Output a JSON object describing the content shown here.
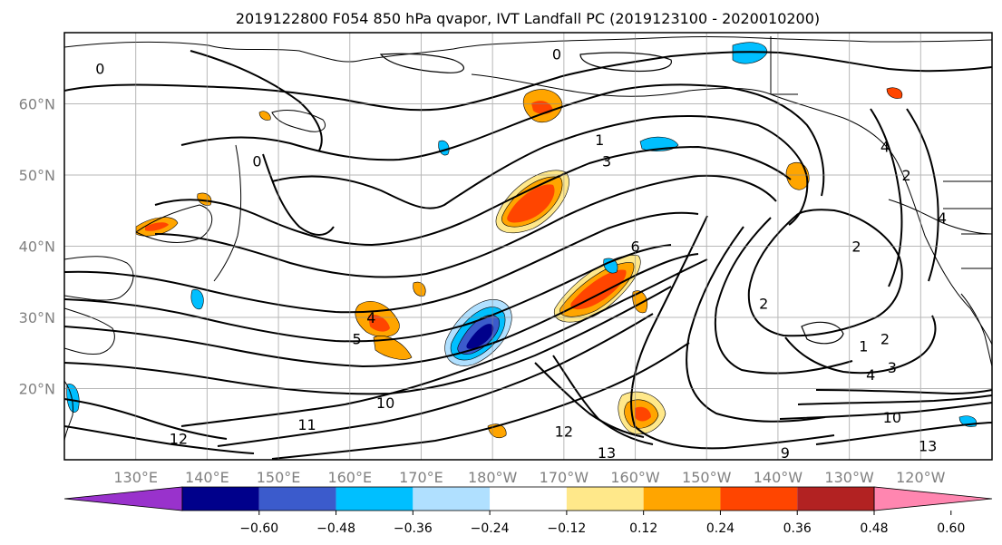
{
  "title": "2019122800 F054 850 hPa qvapor, IVT Landfall PC (2019123100 - 2020010200)",
  "chart_data": {
    "type": "map",
    "map": {
      "lat_labels": [
        "20°N",
        "30°N",
        "40°N",
        "50°N",
        "60°N"
      ],
      "lat_values": [
        20,
        30,
        40,
        50,
        60
      ],
      "lon_labels": [
        "130°E",
        "140°E",
        "150°E",
        "160°E",
        "170°E",
        "180°W",
        "170°W",
        "160°W",
        "150°W",
        "140°W",
        "130°W",
        "120°W"
      ],
      "lon_values": [
        130,
        140,
        150,
        160,
        170,
        180,
        190,
        200,
        210,
        220,
        230,
        240
      ],
      "lon_range": [
        120,
        250
      ],
      "lat_range": [
        10,
        70
      ],
      "grid": true
    },
    "contours": {
      "labels": [
        {
          "value": "0",
          "lon": 125,
          "lat": 65
        },
        {
          "value": "0",
          "lon": 147,
          "lat": 52
        },
        {
          "value": "0",
          "lon": 189,
          "lat": 67
        },
        {
          "value": "1",
          "lon": 195,
          "lat": 55
        },
        {
          "value": "3",
          "lon": 196,
          "lat": 52
        },
        {
          "value": "4",
          "lon": 163,
          "lat": 30
        },
        {
          "value": "5",
          "lon": 161,
          "lat": 27
        },
        {
          "value": "6",
          "lon": 200,
          "lat": 40
        },
        {
          "value": "2",
          "lon": 218,
          "lat": 32
        },
        {
          "value": "2",
          "lon": 231,
          "lat": 40
        },
        {
          "value": "4",
          "lon": 235,
          "lat": 54
        },
        {
          "value": "2",
          "lon": 238,
          "lat": 50
        },
        {
          "value": "4",
          "lon": 243,
          "lat": 44
        },
        {
          "value": "1",
          "lon": 232,
          "lat": 26
        },
        {
          "value": "2",
          "lon": 235,
          "lat": 27
        },
        {
          "value": "4",
          "lon": 233,
          "lat": 22
        },
        {
          "value": "3",
          "lon": 236,
          "lat": 23
        },
        {
          "value": "10",
          "lon": 165,
          "lat": 18
        },
        {
          "value": "11",
          "lon": 154,
          "lat": 15
        },
        {
          "value": "12",
          "lon": 136,
          "lat": 13
        },
        {
          "value": "12",
          "lon": 190,
          "lat": 14
        },
        {
          "value": "13",
          "lon": 196,
          "lat": 11
        },
        {
          "value": "10",
          "lon": 236,
          "lat": 16
        },
        {
          "value": "13",
          "lon": 241,
          "lat": 12
        },
        {
          "value": "9",
          "lon": 221,
          "lat": 11
        }
      ]
    },
    "shading_regions": [
      {
        "level": "neg_strong",
        "lon": 180,
        "lat": 28
      },
      {
        "level": "pos_strong",
        "lon": 184,
        "lat": 47
      },
      {
        "level": "pos_strong",
        "lon": 194,
        "lat": 36
      },
      {
        "level": "pos_mid",
        "lon": 160,
        "lat": 31
      },
      {
        "level": "pos_mid",
        "lon": 186,
        "lat": 58
      },
      {
        "level": "pos_mid",
        "lon": 221,
        "lat": 50
      },
      {
        "level": "neg_mid",
        "lon": 213,
        "lat": 68
      },
      {
        "level": "pos_mid",
        "lon": 200,
        "lat": 16
      }
    ],
    "colorbar": {
      "ticks": [
        "−0.60",
        "−0.48",
        "−0.36",
        "−0.24",
        "−0.12",
        "0.12",
        "0.24",
        "0.36",
        "0.48",
        "0.60"
      ],
      "colors": [
        "#9932cc",
        "#00008b",
        "#3b5bcc",
        "#00bfff",
        "#b0e0ff",
        "#ffffff",
        "#ffe88a",
        "#ffa500",
        "#ff4500",
        "#b22222",
        "#ff86b0"
      ]
    }
  }
}
